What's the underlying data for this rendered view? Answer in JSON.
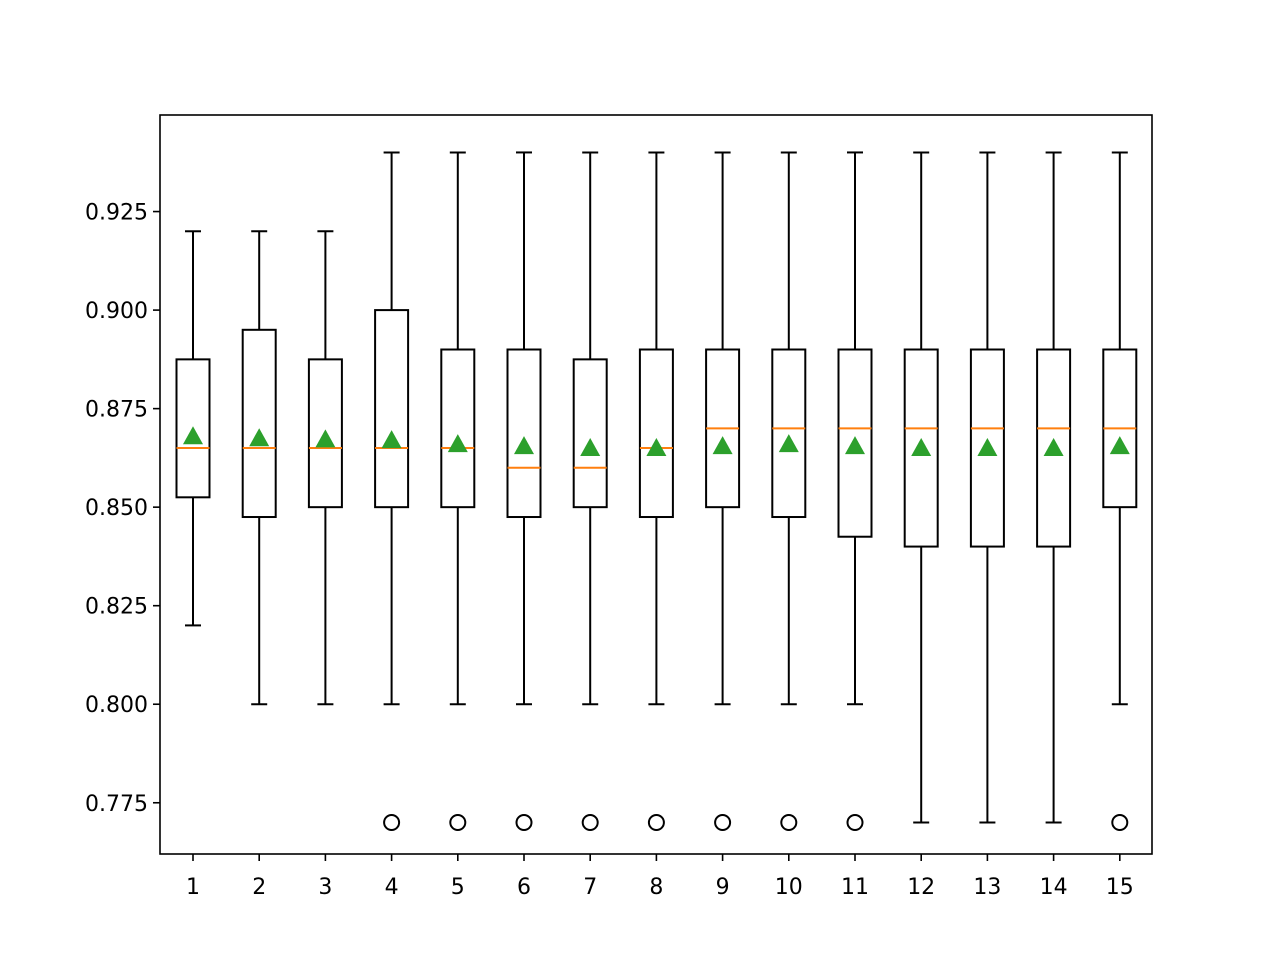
{
  "chart_data": {
    "type": "box",
    "title": "",
    "xlabel": "",
    "ylabel": "",
    "ylim": [
      0.762,
      0.9495
    ],
    "y_ticks": [
      "0.775",
      "0.800",
      "0.825",
      "0.850",
      "0.875",
      "0.900",
      "0.925"
    ],
    "y_tick_values": [
      0.775,
      0.8,
      0.825,
      0.85,
      0.875,
      0.9,
      0.925
    ],
    "categories": [
      "1",
      "2",
      "3",
      "4",
      "5",
      "6",
      "7",
      "8",
      "9",
      "10",
      "11",
      "12",
      "13",
      "14",
      "15"
    ],
    "boxes": [
      {
        "whisker_low": 0.82,
        "q1": 0.8525,
        "median": 0.865,
        "q3": 0.8875,
        "whisker_high": 0.92,
        "mean": 0.868,
        "outliers": []
      },
      {
        "whisker_low": 0.8,
        "q1": 0.8475,
        "median": 0.865,
        "q3": 0.895,
        "whisker_high": 0.92,
        "mean": 0.8675,
        "outliers": []
      },
      {
        "whisker_low": 0.8,
        "q1": 0.85,
        "median": 0.865,
        "q3": 0.8875,
        "whisker_high": 0.92,
        "mean": 0.8672,
        "outliers": []
      },
      {
        "whisker_low": 0.8,
        "q1": 0.85,
        "median": 0.865,
        "q3": 0.9,
        "whisker_high": 0.94,
        "mean": 0.867,
        "outliers": [
          0.77
        ]
      },
      {
        "whisker_low": 0.8,
        "q1": 0.85,
        "median": 0.865,
        "q3": 0.89,
        "whisker_high": 0.94,
        "mean": 0.866,
        "outliers": [
          0.77
        ]
      },
      {
        "whisker_low": 0.8,
        "q1": 0.8475,
        "median": 0.86,
        "q3": 0.89,
        "whisker_high": 0.94,
        "mean": 0.8655,
        "outliers": [
          0.77
        ]
      },
      {
        "whisker_low": 0.8,
        "q1": 0.85,
        "median": 0.86,
        "q3": 0.8875,
        "whisker_high": 0.94,
        "mean": 0.865,
        "outliers": [
          0.77
        ]
      },
      {
        "whisker_low": 0.8,
        "q1": 0.8475,
        "median": 0.865,
        "q3": 0.89,
        "whisker_high": 0.94,
        "mean": 0.865,
        "outliers": [
          0.77
        ]
      },
      {
        "whisker_low": 0.8,
        "q1": 0.85,
        "median": 0.87,
        "q3": 0.89,
        "whisker_high": 0.94,
        "mean": 0.8655,
        "outliers": [
          0.77
        ]
      },
      {
        "whisker_low": 0.8,
        "q1": 0.8475,
        "median": 0.87,
        "q3": 0.89,
        "whisker_high": 0.94,
        "mean": 0.866,
        "outliers": [
          0.77
        ]
      },
      {
        "whisker_low": 0.8,
        "q1": 0.8425,
        "median": 0.87,
        "q3": 0.89,
        "whisker_high": 0.94,
        "mean": 0.8655,
        "outliers": [
          0.77
        ]
      },
      {
        "whisker_low": 0.77,
        "q1": 0.84,
        "median": 0.87,
        "q3": 0.89,
        "whisker_high": 0.94,
        "mean": 0.865,
        "outliers": []
      },
      {
        "whisker_low": 0.77,
        "q1": 0.84,
        "median": 0.87,
        "q3": 0.89,
        "whisker_high": 0.94,
        "mean": 0.865,
        "outliers": []
      },
      {
        "whisker_low": 0.77,
        "q1": 0.84,
        "median": 0.87,
        "q3": 0.89,
        "whisker_high": 0.94,
        "mean": 0.865,
        "outliers": []
      },
      {
        "whisker_low": 0.8,
        "q1": 0.85,
        "median": 0.87,
        "q3": 0.89,
        "whisker_high": 0.94,
        "mean": 0.8655,
        "outliers": [
          0.77
        ]
      }
    ],
    "colors": {
      "box": "#000000",
      "median": "#ff7f0e",
      "mean": "#2ca02c",
      "outlier": "#000000"
    },
    "grid": false,
    "legend": "none"
  }
}
